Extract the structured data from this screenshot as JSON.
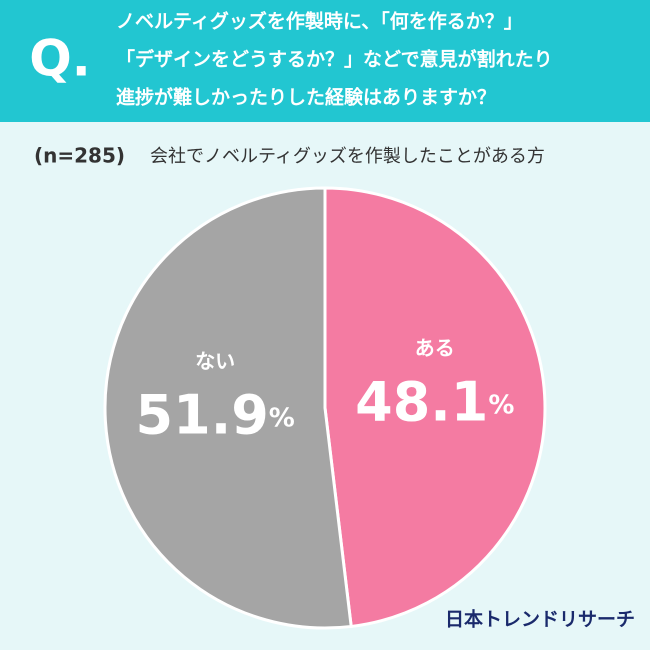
{
  "chart_data": {
    "type": "pie",
    "title_prefix": "Q.",
    "title": [
      "ノベルティグッズを作製時に、「何を作るか？」",
      "「デザインをどうするか？」などで意見が割れたり",
      "進捗が難しかったりした経験はありますか？"
    ],
    "sample_size": "(n=285)",
    "subtitle": "会社でノベルティグッズを作製したことがある方",
    "categories": [
      "ある",
      "ない"
    ],
    "values": [
      48.1,
      51.9
    ],
    "value_labels": [
      "48.1%",
      "51.9%"
    ],
    "colors": [
      "#f47ba2",
      "#a5a5a5"
    ],
    "source": "日本トレンドリサーチ"
  }
}
